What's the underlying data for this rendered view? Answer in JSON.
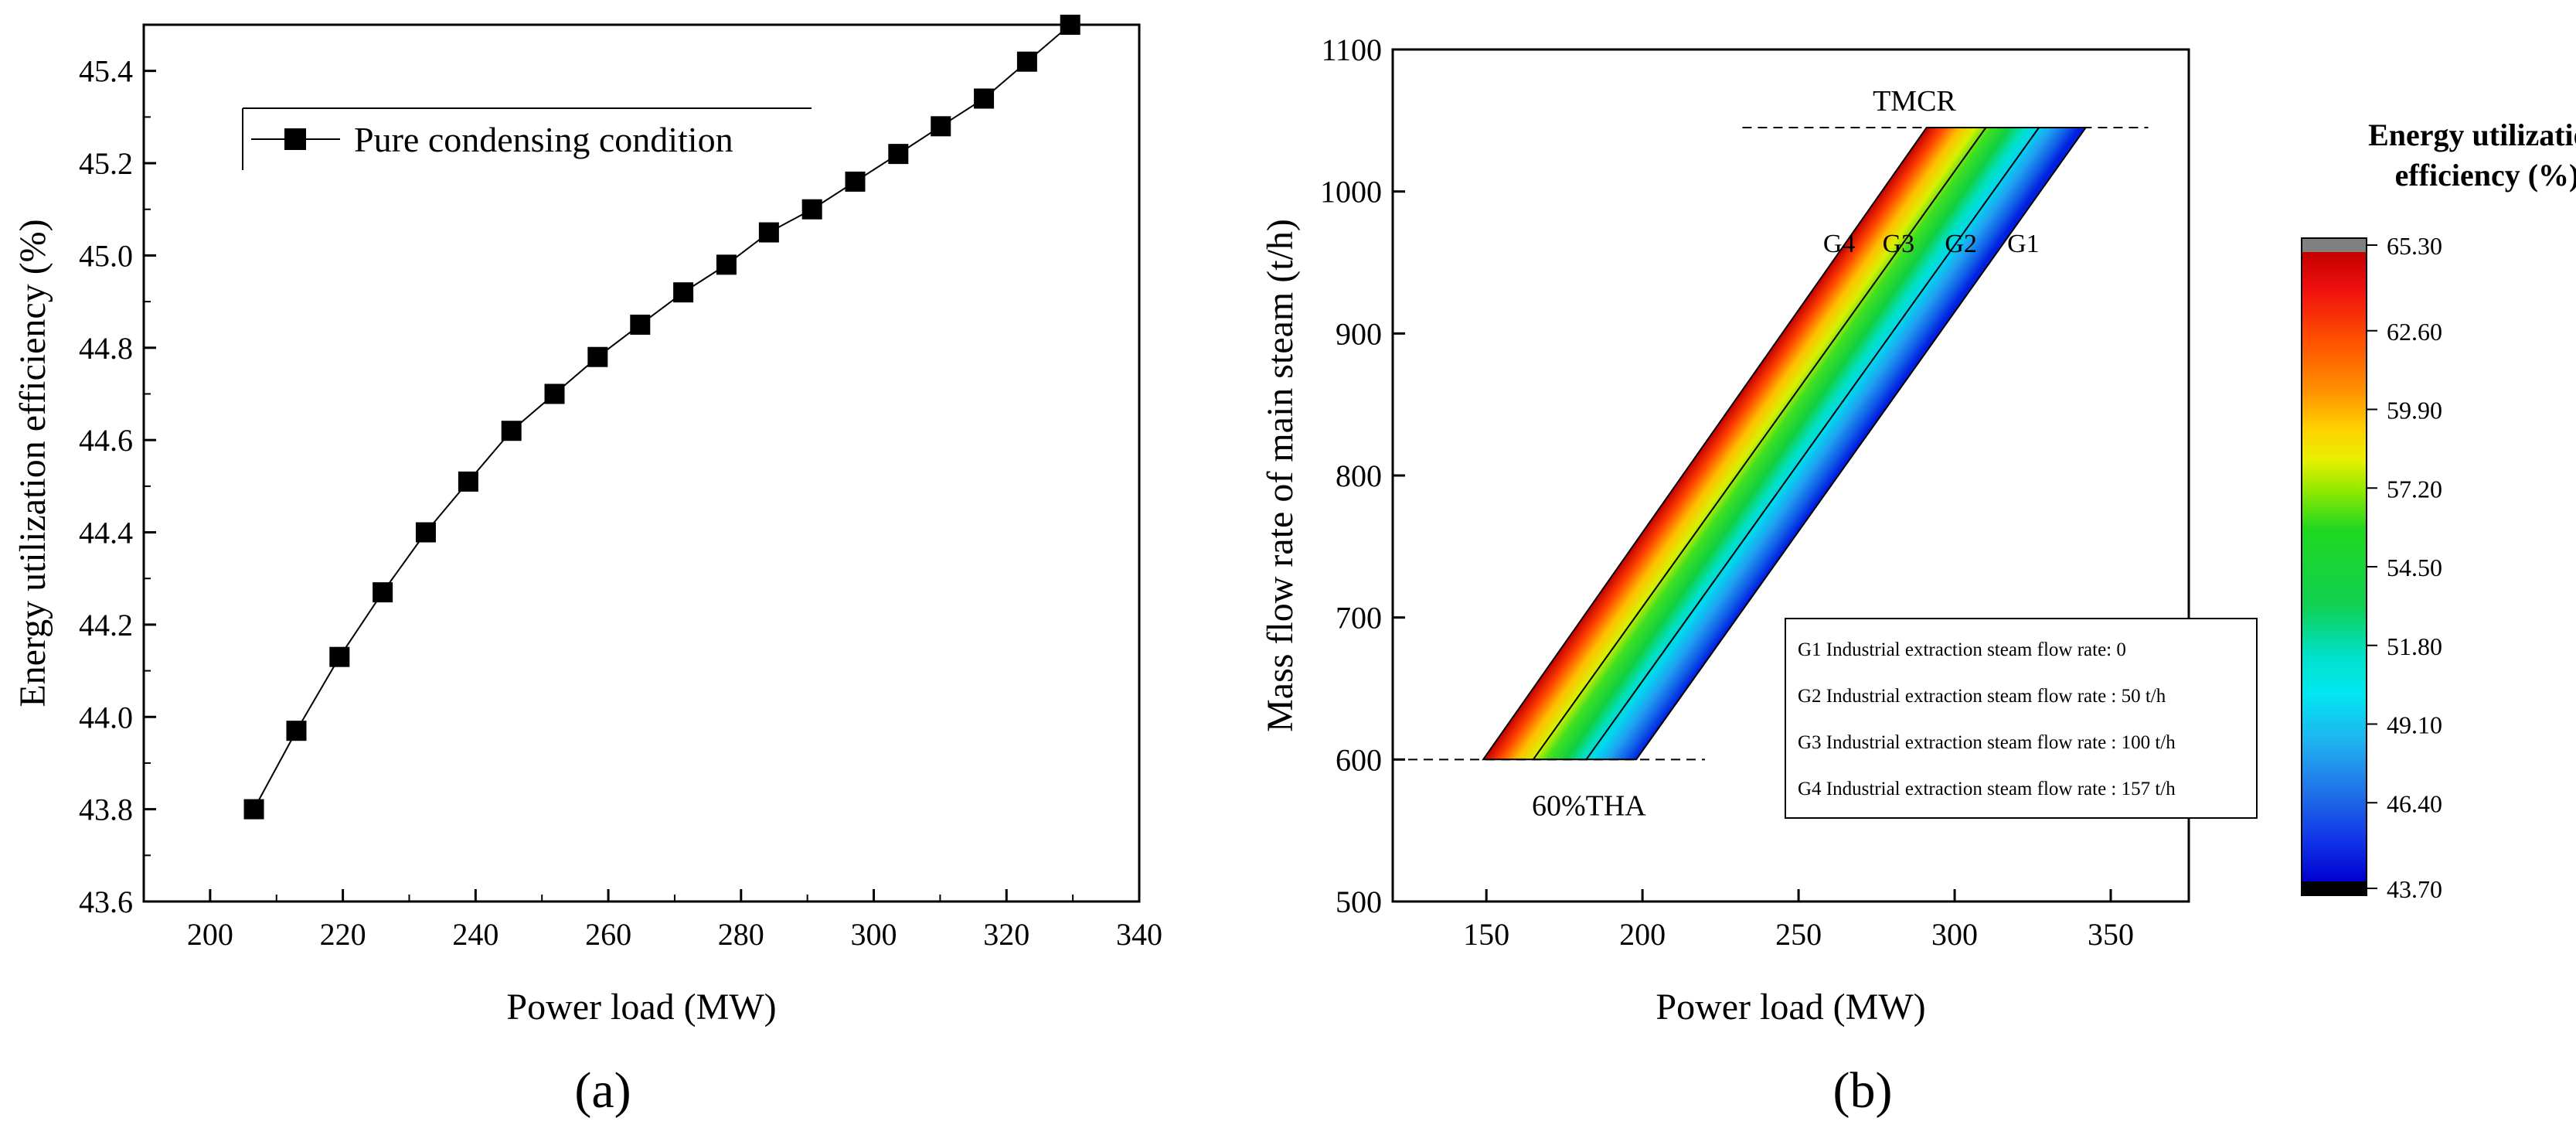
{
  "chart_data": [
    {
      "type": "line",
      "panel_label": "(a)",
      "xlabel": "Power load (MW)",
      "ylabel": "Energy utilization efficiency (%)",
      "xlim": [
        190,
        340
      ],
      "ylim": [
        43.6,
        45.5
      ],
      "xticks": [
        "200",
        "220",
        "240",
        "260",
        "280",
        "300",
        "320",
        "340"
      ],
      "yticks": [
        "43.6",
        "43.8",
        "44.0",
        "44.2",
        "44.4",
        "44.6",
        "44.8",
        "45.0",
        "45.2",
        "45.4"
      ],
      "legend_position": "top-left",
      "series": [
        {
          "name": "Pure condensing condition",
          "marker": "square",
          "color": "#000000",
          "x": [
            206.6,
            213.0,
            219.5,
            226.0,
            232.5,
            238.9,
            245.4,
            251.9,
            258.4,
            264.8,
            271.3,
            277.8,
            284.2,
            290.7,
            297.2,
            303.7,
            310.1,
            316.6,
            323.1,
            329.6
          ],
          "y": [
            43.8,
            43.97,
            44.13,
            44.27,
            44.4,
            44.51,
            44.62,
            44.7,
            44.78,
            44.85,
            44.92,
            44.98,
            45.05,
            45.1,
            45.16,
            45.22,
            45.28,
            45.34,
            45.42,
            45.5
          ]
        }
      ]
    },
    {
      "type": "heatmap",
      "panel_label": "(b)",
      "xlabel": "Power load (MW)",
      "ylabel": "Mass flow rate of main steam (t/h)",
      "xlim": [
        120,
        375
      ],
      "ylim": [
        500,
        1100
      ],
      "xticks": [
        "150",
        "200",
        "250",
        "300",
        "350"
      ],
      "yticks": [
        "500",
        "600",
        "700",
        "800",
        "900",
        "1000",
        "1100"
      ],
      "region": {
        "bottom_flow": 600,
        "top_flow": 1045,
        "bottom_left_x": 149,
        "bottom_right_x": 198,
        "top_left_x": 291,
        "top_right_x": 342
      },
      "boundaries": [
        {
          "label": "G4",
          "bottom_x": 149,
          "top_x": 291,
          "label_x": 263
        },
        {
          "label": "G3",
          "bottom_x": 165,
          "top_x": 310,
          "label_x": 282
        },
        {
          "label": "G2",
          "bottom_x": 182,
          "top_x": 327,
          "label_x": 302
        },
        {
          "label": "G1",
          "bottom_x": 198,
          "top_x": 342,
          "label_x": 322
        }
      ],
      "reference_lines": [
        {
          "label": "TMCR",
          "y": 1045,
          "x_start": 232,
          "x_end": 362
        },
        {
          "label": "60%THA",
          "y": 600,
          "x_start": 120,
          "x_end": 220
        }
      ],
      "legend_entries": [
        "G1 Industrial extraction steam flow rate: 0",
        "G2 Industrial extraction steam flow rate : 50 t/h",
        "G3 Industrial extraction steam flow rate : 100 t/h",
        "G4 Industrial extraction steam flow rate : 157 t/h"
      ],
      "colorbar": {
        "title_line1": "Energy utilization",
        "title_line2": "efficiency (%)",
        "min": 43.7,
        "max": 65.3,
        "ticks": [
          "65.30",
          "62.60",
          "59.90",
          "57.20",
          "54.50",
          "51.80",
          "49.10",
          "46.40",
          "43.70"
        ],
        "over_color": "#808080",
        "under_color": "#000000"
      }
    }
  ]
}
